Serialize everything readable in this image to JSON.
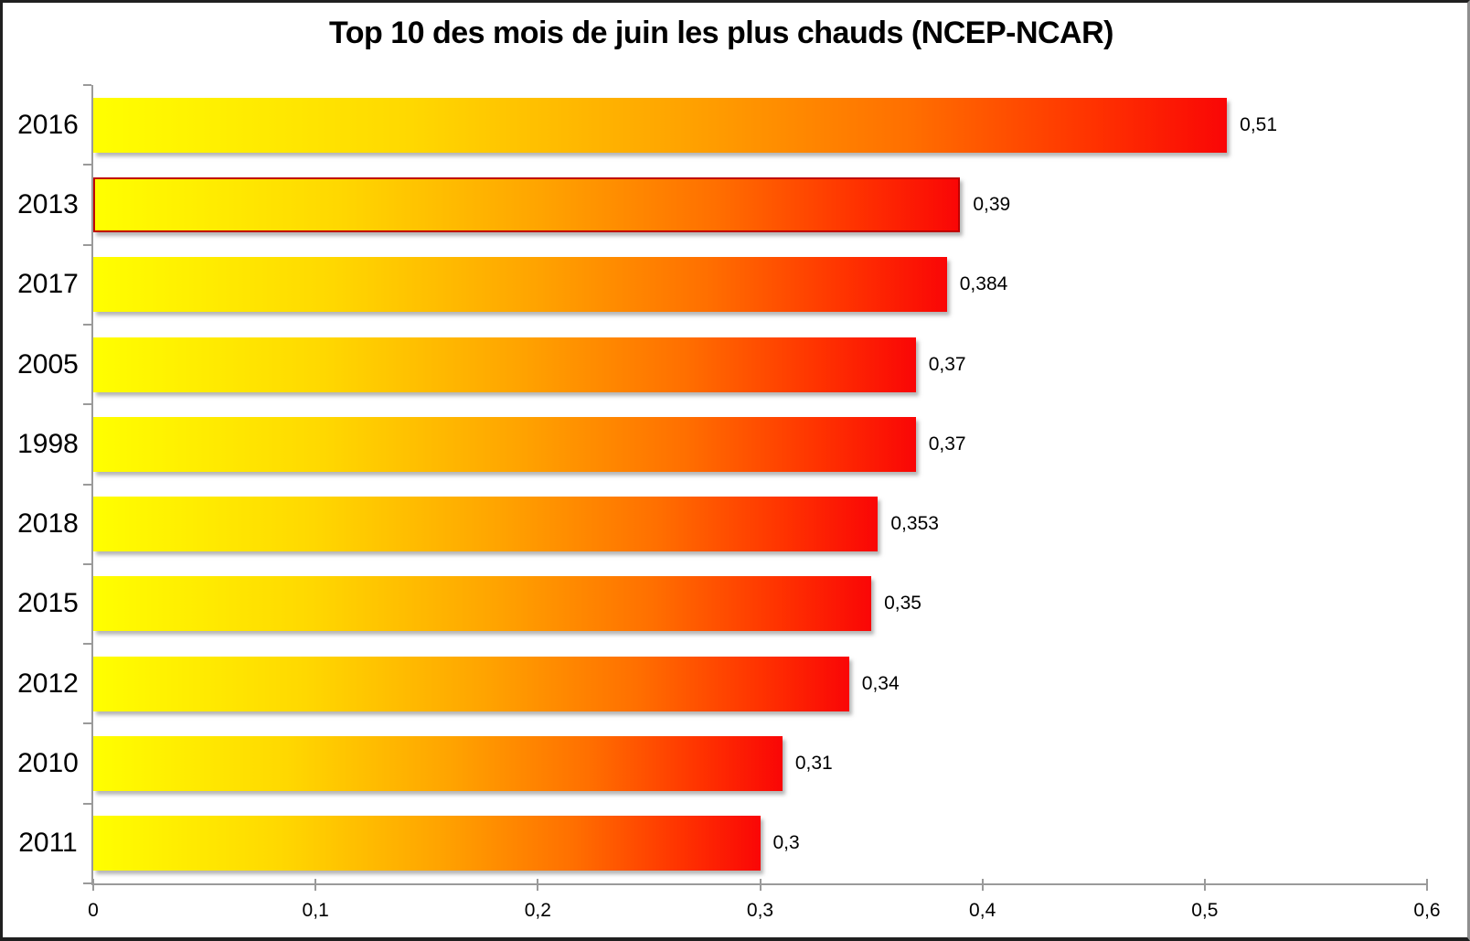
{
  "chart_data": {
    "type": "bar",
    "orientation": "horizontal",
    "title": "Top 10 des mois de juin les plus chauds (NCEP-NCAR)",
    "categories": [
      "2016",
      "2013",
      "2017",
      "2005",
      "1998",
      "2018",
      "2015",
      "2012",
      "2010",
      "2011"
    ],
    "values": [
      0.51,
      0.39,
      0.384,
      0.37,
      0.37,
      0.353,
      0.35,
      0.34,
      0.31,
      0.3
    ],
    "value_labels": [
      "0,51",
      "0,39",
      "0,384",
      "0,37",
      "0,37",
      "0,353",
      "0,35",
      "0,34",
      "0,31",
      "0,3"
    ],
    "xlabel": "",
    "ylabel": "",
    "xlim": [
      0,
      0.6
    ],
    "x_tick_labels": [
      "0",
      "0,1",
      "0,2",
      "0,3",
      "0,4",
      "0,5",
      "0,6"
    ],
    "grid": false,
    "legend": false,
    "highlighted_category": "2013",
    "colors": {
      "bar_gradient": [
        "#FFFF00",
        "#FFD800",
        "#FFA300",
        "#FF6F00",
        "#FF3300",
        "#FA0606"
      ],
      "highlight_border": "#C00000",
      "axis": "#9A9A9A",
      "text": "#000000",
      "background": "#FFFFFF"
    }
  }
}
